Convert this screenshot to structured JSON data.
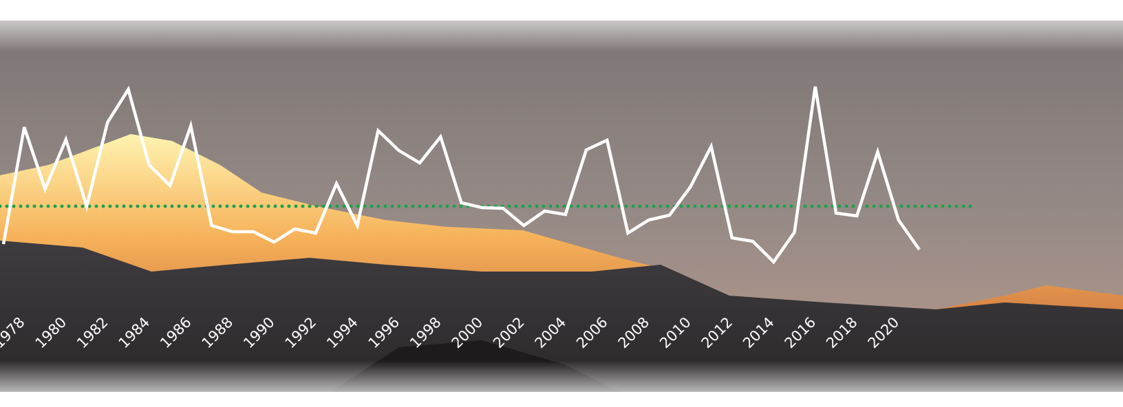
{
  "chart_data": {
    "type": "line",
    "x": [
      1977,
      1978,
      1979,
      1980,
      1981,
      1982,
      1983,
      1984,
      1985,
      1986,
      1987,
      1988,
      1989,
      1990,
      1991,
      1992,
      1993,
      1994,
      1995,
      1996,
      1997,
      1998,
      1999,
      2000,
      2001,
      2002,
      2003,
      2004,
      2005,
      2006,
      2007,
      2008,
      2009,
      2010,
      2011,
      2012,
      2013,
      2014,
      2015,
      2016,
      2017,
      2018,
      2019,
      2020,
      2021
    ],
    "series": [
      {
        "color": "#ffffff",
        "values": [
          45,
          215,
          125,
          197,
          100,
          222,
          270,
          160,
          130,
          217,
          72,
          63,
          63,
          48,
          67,
          61,
          133,
          72,
          210,
          181,
          163,
          201,
          105,
          98,
          97,
          72,
          93,
          88,
          182,
          196,
          61,
          80,
          87,
          128,
          187,
          54,
          49,
          19,
          62,
          274,
          90,
          86,
          179,
          80,
          37
        ]
      }
    ],
    "average": {
      "value": 100,
      "color": "#1aa34a"
    },
    "xlim": [
      1977,
      2021
    ],
    "xticks": [
      1978,
      1980,
      1982,
      1984,
      1986,
      1988,
      1990,
      1992,
      1994,
      1996,
      1998,
      2000,
      2002,
      2004,
      2006,
      2008,
      2010,
      2012,
      2014,
      2016,
      2018,
      2020
    ],
    "ylim": [
      0,
      300
    ]
  }
}
